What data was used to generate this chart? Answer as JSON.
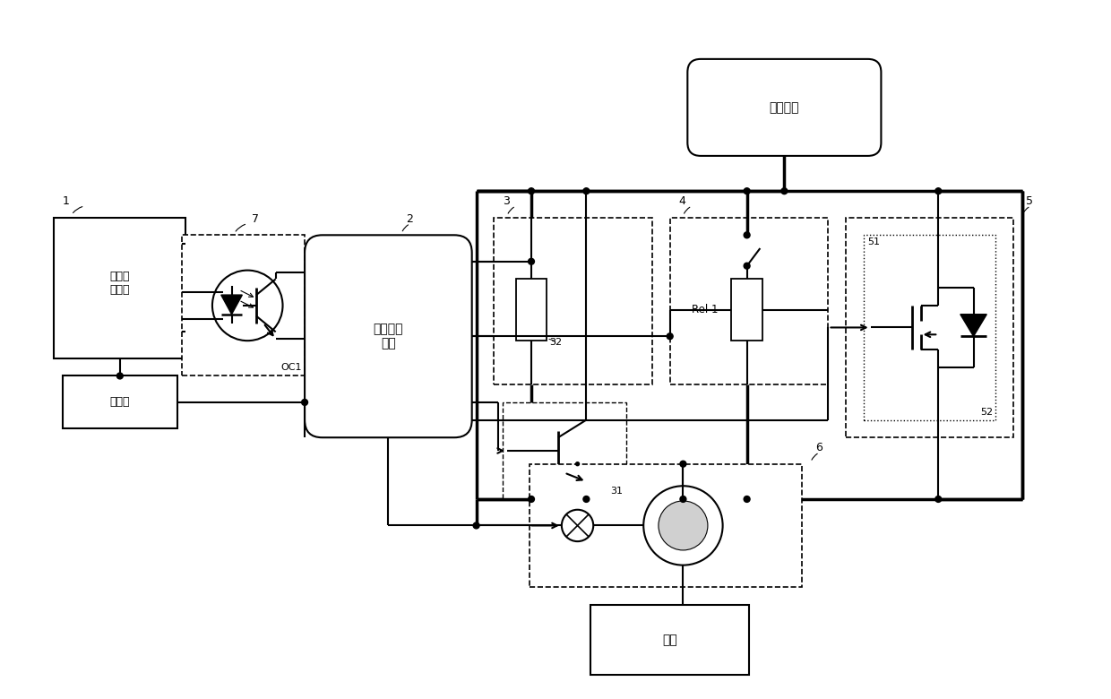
{
  "bg_color": "#ffffff",
  "lw": 1.5,
  "tlw": 2.5,
  "labels": {
    "ecm": "电子控\n制单元",
    "timing": "时序控制\n电路",
    "battery_power": "动力电池",
    "battery_accum": "蓄电池",
    "motor": "电机",
    "OC1": "OC1",
    "Rel": "Rel 1",
    "num1": "1",
    "num2": "2",
    "num3": "3",
    "num4": "4",
    "num5": "5",
    "num6": "6",
    "num7": "7",
    "num31": "31",
    "num32": "32",
    "num51": "51",
    "num52": "52"
  },
  "figsize": [
    12.4,
    7.8
  ],
  "dpi": 100
}
